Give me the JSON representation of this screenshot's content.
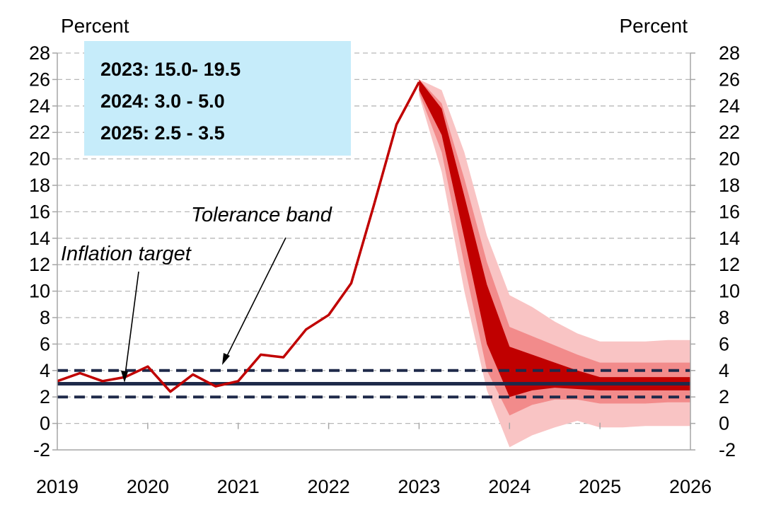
{
  "chart_data": {
    "type": "area",
    "unit_left": "Percent",
    "unit_right": "Percent",
    "x_ticks": [
      "2019",
      "2020",
      "2021",
      "2022",
      "2023",
      "2024",
      "2025",
      "2026"
    ],
    "xlim": [
      2019,
      2026
    ],
    "ylim": [
      -2,
      28
    ],
    "y_ticks": [
      "-2",
      "0",
      "2",
      "4",
      "6",
      "8",
      "10",
      "12",
      "14",
      "16",
      "18",
      "20",
      "22",
      "24",
      "26",
      "28"
    ],
    "grid": true,
    "colors": {
      "inflation_line": "#c00000",
      "band_inner": "#c00000",
      "band_middle": "#f28b8b",
      "band_outer": "#f9c4c4",
      "target": "#1f2a4a",
      "info_box": "#c6ecfa"
    },
    "inflation": {
      "x": [
        2019.0,
        2019.25,
        2019.5,
        2019.75,
        2020.0,
        2020.25,
        2020.5,
        2020.75,
        2021.0,
        2021.25,
        2021.5,
        2021.75,
        2022.0,
        2022.25,
        2022.5,
        2022.75,
        2023.0
      ],
      "y": [
        3.2,
        3.8,
        3.2,
        3.5,
        4.3,
        2.4,
        3.7,
        2.8,
        3.2,
        5.2,
        5.0,
        7.1,
        8.2,
        10.6,
        16.5,
        22.6,
        25.8
      ]
    },
    "fan": {
      "x": [
        2023.0,
        2023.25,
        2023.5,
        2023.75,
        2024.0,
        2024.25,
        2024.5,
        2024.75,
        2025.0,
        2025.25,
        2025.5,
        2025.75,
        2026.0
      ],
      "center": [
        25.8,
        22.8,
        16.5,
        9.5,
        4.3,
        4.0,
        3.6,
        3.3,
        3.0,
        3.0,
        3.0,
        3.0,
        3.0
      ],
      "inner_low": [
        25.2,
        21.8,
        14.0,
        6.0,
        2.0,
        2.5,
        2.7,
        2.6,
        2.5,
        2.5,
        2.5,
        2.5,
        2.5
      ],
      "inner_high": [
        26.0,
        23.8,
        17.2,
        10.5,
        5.8,
        5.2,
        4.6,
        4.0,
        3.5,
        3.5,
        3.5,
        3.5,
        3.5
      ],
      "mid_low": [
        25.0,
        20.5,
        12.0,
        4.0,
        0.6,
        1.4,
        1.8,
        1.8,
        1.5,
        1.5,
        1.5,
        1.6,
        1.6
      ],
      "mid_high": [
        26.0,
        24.2,
        18.5,
        12.2,
        7.3,
        6.6,
        5.9,
        5.2,
        4.6,
        4.6,
        4.6,
        4.6,
        4.6
      ],
      "outer_low": [
        24.8,
        19.0,
        10.0,
        2.5,
        -1.8,
        -0.9,
        -0.3,
        0.2,
        -0.3,
        -0.3,
        -0.2,
        -0.2,
        -0.2
      ],
      "outer_high": [
        26.0,
        25.2,
        20.5,
        14.2,
        9.7,
        8.8,
        7.7,
        6.8,
        6.2,
        6.2,
        6.2,
        6.3,
        6.3
      ]
    },
    "target": 3,
    "tolerance_band": [
      2,
      4
    ],
    "annotations": {
      "inflation_target": "Inflation target",
      "tolerance_band": "Tolerance band"
    },
    "info_box": [
      "2023: 15.0- 19.5",
      "2024: 3.0 - 5.0",
      "2025: 2.5 - 3.5"
    ]
  }
}
